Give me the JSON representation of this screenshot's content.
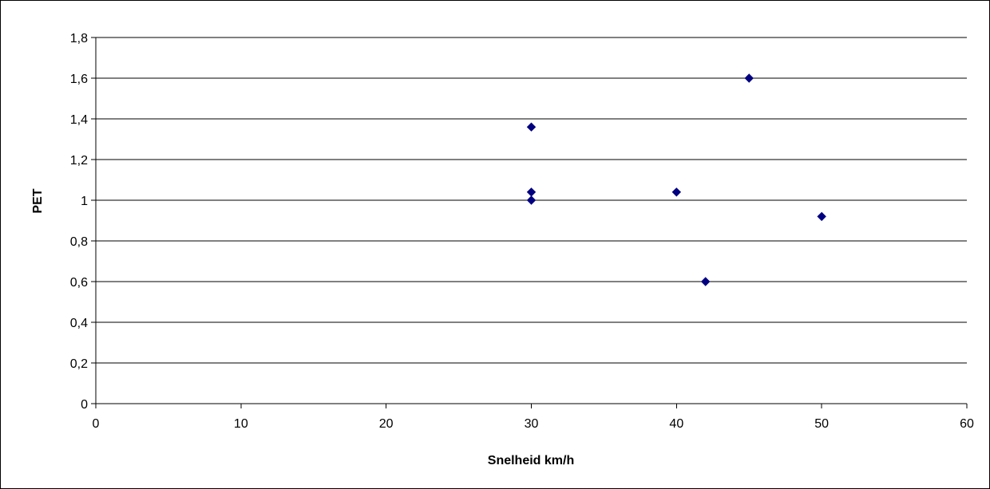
{
  "chart_data": {
    "type": "scatter",
    "title": "",
    "xlabel": "Snelheid km/h",
    "ylabel": "PET",
    "xlim": [
      0,
      60
    ],
    "ylim": [
      0,
      1.8
    ],
    "x_ticks": [
      0,
      10,
      20,
      30,
      40,
      50,
      60
    ],
    "y_ticks": [
      0,
      0.2,
      0.4,
      0.6,
      0.8,
      1,
      1.2,
      1.4,
      1.6,
      1.8
    ],
    "x_tick_labels": [
      "0",
      "10",
      "20",
      "30",
      "40",
      "50",
      "60"
    ],
    "y_tick_labels": [
      "0",
      "0,2",
      "0,4",
      "0,6",
      "0,8",
      "1",
      "1,2",
      "1,4",
      "1,6",
      "1,8"
    ],
    "grid": "horizontal",
    "legend": "none",
    "marker": "diamond",
    "marker_color": "#000080",
    "points": [
      {
        "x": 30,
        "y": 1.36
      },
      {
        "x": 30,
        "y": 1.04
      },
      {
        "x": 30,
        "y": 1.0
      },
      {
        "x": 40,
        "y": 1.04
      },
      {
        "x": 42,
        "y": 0.6
      },
      {
        "x": 45,
        "y": 1.6
      },
      {
        "x": 50,
        "y": 0.92
      }
    ]
  }
}
